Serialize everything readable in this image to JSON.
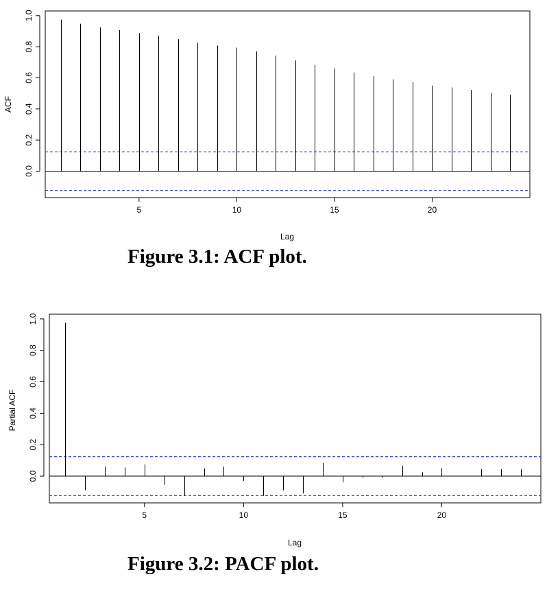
{
  "figures": {
    "acf_caption": "Figure 3.1: ACF plot.",
    "pacf_caption": "Figure 3.2: PACF plot."
  },
  "chart_data": [
    {
      "type": "bar",
      "title": "",
      "xlabel": "Lag",
      "ylabel": "ACF",
      "x": [
        1,
        2,
        3,
        4,
        5,
        6,
        7,
        8,
        9,
        10,
        11,
        12,
        13,
        14,
        15,
        16,
        17,
        18,
        19,
        20,
        21,
        22,
        23,
        24
      ],
      "values": [
        0.975,
        0.948,
        0.924,
        0.907,
        0.888,
        0.871,
        0.848,
        0.826,
        0.807,
        0.794,
        0.77,
        0.744,
        0.712,
        0.682,
        0.66,
        0.635,
        0.612,
        0.59,
        0.571,
        0.551,
        0.538,
        0.522,
        0.504,
        0.492
      ],
      "xticks": [
        5,
        10,
        15,
        20
      ],
      "yticks": [
        0.0,
        0.2,
        0.4,
        0.6,
        0.8,
        1.0
      ],
      "ytick_labels": [
        "0.0",
        "0.2",
        "0.4",
        "0.6",
        "0.8",
        "1.0"
      ],
      "xlim": [
        0.2,
        25
      ],
      "ylim": [
        -0.17,
        1.03
      ],
      "confidence_bounds": [
        0.124,
        -0.124
      ],
      "bar_color": "#000000",
      "bound_color": "#3b4fd8",
      "grid": false
    },
    {
      "type": "bar",
      "title": "",
      "xlabel": "Lag",
      "ylabel": "Partial ACF",
      "x": [
        1,
        2,
        3,
        4,
        5,
        6,
        7,
        8,
        9,
        10,
        11,
        12,
        13,
        14,
        15,
        16,
        17,
        18,
        19,
        20,
        21,
        22,
        23,
        24
      ],
      "values": [
        0.975,
        -0.09,
        0.06,
        0.055,
        0.075,
        -0.055,
        -0.125,
        0.05,
        0.06,
        -0.03,
        -0.125,
        -0.09,
        -0.11,
        0.085,
        -0.04,
        -0.01,
        -0.01,
        0.065,
        0.025,
        0.05,
        0.0,
        0.045,
        0.045,
        0.045
      ],
      "xticks": [
        5,
        10,
        15,
        20
      ],
      "yticks": [
        0.0,
        0.2,
        0.4,
        0.6,
        0.8,
        1.0
      ],
      "ytick_labels": [
        "0.0",
        "0.2",
        "0.4",
        "0.6",
        "0.8",
        "1.0"
      ],
      "xlim": [
        0.2,
        25
      ],
      "ylim": [
        -0.17,
        1.03
      ],
      "confidence_bounds": [
        0.124,
        -0.124
      ],
      "bar_color": "#000000",
      "bound_color": "#3b4fd8",
      "grid": false
    }
  ]
}
